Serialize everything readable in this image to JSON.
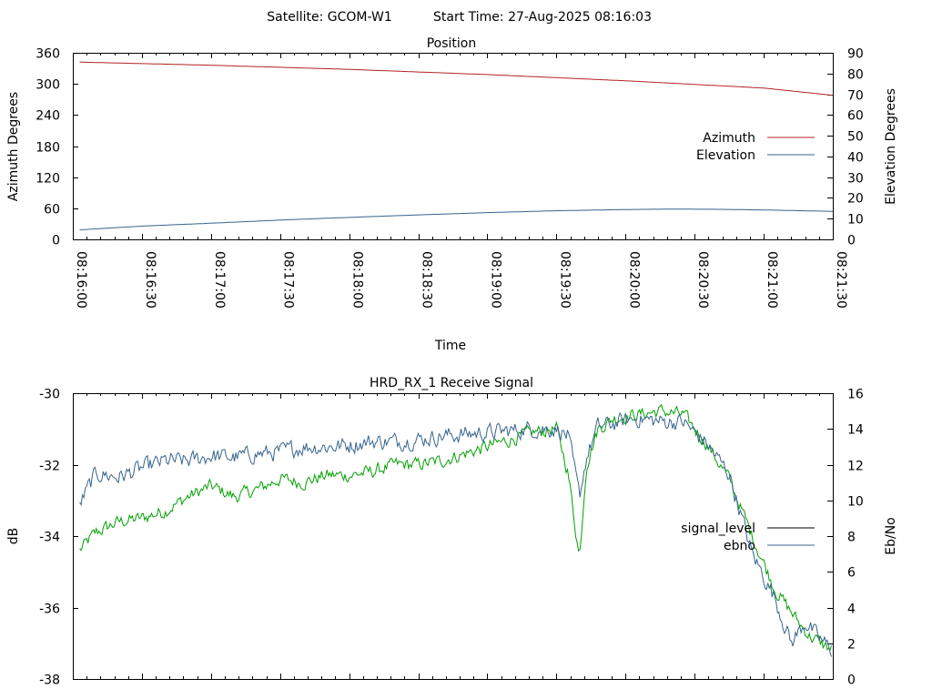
{
  "header": {
    "satellite": "Satellite: GCOM-W1",
    "start_time": "Start Time: 27-Aug-2025 08:16:03"
  },
  "chart_data": [
    {
      "type": "line",
      "title": "Position",
      "xlabel": "Time",
      "ylabel": "Azimuth Degrees",
      "y2label": "Elevation Degrees",
      "x_ticks": [
        "08:16:00",
        "08:16:30",
        "08:17:00",
        "08:17:30",
        "08:18:00",
        "08:18:30",
        "08:19:00",
        "08:19:30",
        "08:20:00",
        "08:20:30",
        "08:21:00",
        "08:21:30"
      ],
      "xlim": [
        0,
        330
      ],
      "ylim": [
        0,
        360
      ],
      "y_ticks": [
        "0",
        "60",
        "120",
        "180",
        "240",
        "300",
        "360"
      ],
      "y2lim": [
        0,
        90
      ],
      "y2_ticks": [
        "0",
        "10",
        "20",
        "30",
        "40",
        "50",
        "60",
        "70",
        "80",
        "90"
      ],
      "legend_position": "right",
      "grid": false,
      "series": [
        {
          "name": "Azimuth",
          "axis": "left",
          "color": "#b22222",
          "x": [
            3,
            60,
            120,
            180,
            240,
            300,
            330
          ],
          "y": [
            342,
            336,
            328,
            318,
            306,
            292,
            278
          ]
        },
        {
          "name": "Elevation",
          "axis": "right",
          "color": "#36648b",
          "x": [
            3,
            30,
            60,
            90,
            120,
            150,
            180,
            210,
            240,
            260,
            280,
            300,
            330
          ],
          "y": [
            4.6,
            6.4,
            7.8,
            9.3,
            10.6,
            11.8,
            12.9,
            13.8,
            14.4,
            14.6,
            14.5,
            14.2,
            13.5
          ]
        }
      ]
    },
    {
      "type": "line",
      "title": "HRD_RX_1 Receive Signal",
      "ylabel": "dB",
      "y2label": "Eb/No",
      "xlim": [
        0,
        330
      ],
      "ylim": [
        -38,
        -30
      ],
      "y_ticks": [
        "-30",
        "-32",
        "-34",
        "-36",
        "-38"
      ],
      "y2lim": [
        0,
        16
      ],
      "y2_ticks": [
        "0",
        "2",
        "4",
        "6",
        "8",
        "10",
        "12",
        "14",
        "16"
      ],
      "legend_position": "right",
      "grid": false,
      "series": [
        {
          "name": "signal_level",
          "axis": "left",
          "color": "#00a000",
          "legend_color": "#000000",
          "x": [
            3,
            10,
            20,
            30,
            40,
            50,
            60,
            70,
            80,
            90,
            100,
            110,
            120,
            130,
            140,
            150,
            160,
            170,
            180,
            190,
            200,
            210,
            215,
            220,
            223,
            228,
            235,
            245,
            255,
            265,
            275,
            285,
            295,
            305,
            315,
            320,
            325,
            330
          ],
          "y": [
            -34.4,
            -33.9,
            -33.6,
            -33.5,
            -33.3,
            -32.9,
            -32.6,
            -32.9,
            -32.7,
            -32.4,
            -32.5,
            -32.3,
            -32.3,
            -32.2,
            -32.0,
            -32.0,
            -31.9,
            -31.7,
            -31.5,
            -31.3,
            -31.1,
            -31.0,
            -32.2,
            -34.6,
            -32.0,
            -31.0,
            -30.7,
            -30.6,
            -30.5,
            -30.6,
            -31.4,
            -32.4,
            -34.0,
            -35.5,
            -36.4,
            -36.8,
            -37.0,
            -37.2
          ]
        },
        {
          "name": "ebno",
          "axis": "right",
          "color": "#36648b",
          "x": [
            3,
            10,
            20,
            30,
            40,
            50,
            60,
            70,
            80,
            90,
            100,
            110,
            120,
            130,
            140,
            150,
            160,
            170,
            180,
            190,
            200,
            210,
            215,
            220,
            223,
            228,
            235,
            245,
            255,
            265,
            275,
            285,
            295,
            305,
            312,
            318,
            323,
            330
          ],
          "y": [
            9.8,
            11.5,
            11.3,
            11.8,
            12.2,
            12.2,
            12.5,
            12.4,
            12.6,
            12.7,
            13.0,
            13.0,
            13.1,
            13.3,
            13.3,
            13.4,
            13.6,
            13.7,
            13.8,
            13.9,
            14.0,
            14.0,
            13.6,
            10.2,
            12.4,
            14.1,
            14.3,
            14.6,
            14.4,
            14.4,
            13.2,
            11.5,
            7.0,
            4.5,
            2.0,
            3.2,
            2.4,
            1.6
          ]
        }
      ]
    }
  ]
}
